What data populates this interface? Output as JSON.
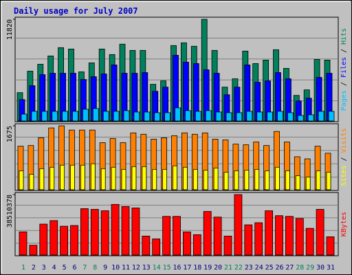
{
  "title": "Daily usage for July 2007",
  "legend_separator": " / ",
  "chart_data": [
    {
      "type": "bar",
      "ylim": [
        0,
        11820
      ],
      "yticks": [
        11820
      ],
      "series": [
        {
          "name": "Hits",
          "color": "#00805c",
          "values": [
            3297,
            5790,
            6593,
            7558,
            8523,
            8362,
            5709,
            6754,
            8362,
            7719,
            8925,
            8202,
            8202,
            4262,
            4664,
            8764,
            9086,
            8684,
            11820,
            8202,
            3940,
            4905,
            8121,
            6674,
            7076,
            8282,
            6111,
            2975,
            3618,
            7156,
            7076
          ]
        },
        {
          "name": "Files",
          "color": "#0000ff",
          "values": [
            2493,
            4101,
            5387,
            5548,
            5548,
            5548,
            4824,
            5146,
            5468,
            6513,
            5548,
            5548,
            5628,
            3457,
            3940,
            7639,
            6835,
            6674,
            5950,
            5548,
            3055,
            3940,
            6513,
            4503,
            4664,
            5628,
            4905,
            2332,
            2653,
            5066,
            5548
          ]
        },
        {
          "name": "Pages",
          "color": "#00c0ff",
          "values": [
            804,
            1126,
            1126,
            1126,
            1126,
            1126,
            1367,
            1447,
            1126,
            1126,
            1206,
            1045,
            1045,
            965,
            965,
            1528,
            1206,
            1126,
            1206,
            1045,
            965,
            965,
            1126,
            1045,
            1045,
            1126,
            965,
            643,
            723,
            1126,
            1126
          ]
        }
      ]
    },
    {
      "type": "bar",
      "ylim": [
        0,
        1675
      ],
      "yticks": [
        1675
      ],
      "series": [
        {
          "name": "Visits",
          "color": "#ff8000",
          "values": [
            1141,
            1159,
            1362,
            1620,
            1675,
            1564,
            1564,
            1564,
            1233,
            1343,
            1233,
            1490,
            1454,
            1325,
            1362,
            1417,
            1490,
            1454,
            1490,
            1325,
            1306,
            1196,
            1178,
            1251,
            1159,
            1527,
            1251,
            865,
            810,
            1141,
            957
          ]
        },
        {
          "name": "Sites",
          "color": "#ffff00",
          "values": [
            497,
            405,
            552,
            589,
            644,
            644,
            644,
            681,
            552,
            589,
            534,
            607,
            607,
            534,
            534,
            626,
            589,
            534,
            515,
            570,
            460,
            497,
            515,
            534,
            497,
            589,
            497,
            368,
            331,
            497,
            460
          ]
        }
      ]
    },
    {
      "type": "bar",
      "ylim": [
        0,
        38510378
      ],
      "yticks": [
        38510378
      ],
      "categories": [
        "1",
        "2",
        "3",
        "4",
        "5",
        "6",
        "7",
        "8",
        "9",
        "10",
        "11",
        "12",
        "13",
        "14",
        "15",
        "16",
        "17",
        "18",
        "19",
        "20",
        "21",
        "22",
        "23",
        "24",
        "25",
        "26",
        "27",
        "28",
        "29",
        "30",
        "31"
      ],
      "highlight_categories": [
        "1",
        "7",
        "8",
        "14",
        "15",
        "21",
        "22",
        "28",
        "29"
      ],
      "label_color": "#000080",
      "highlight_color": "#00805c",
      "series": [
        {
          "name": "KBytes",
          "color": "#ff0000",
          "values": [
            14777000,
            6269000,
            19703000,
            21942000,
            18360000,
            18807000,
            29554000,
            29107000,
            28211000,
            32241000,
            30898000,
            30002000,
            12090000,
            10299000,
            24629000,
            24629000,
            14777000,
            12986000,
            27763000,
            24181000,
            12090000,
            38510378,
            19255000,
            20599000,
            28211000,
            25077000,
            24629000,
            23285000,
            17016000,
            29107000,
            11643000
          ]
        }
      ]
    }
  ]
}
